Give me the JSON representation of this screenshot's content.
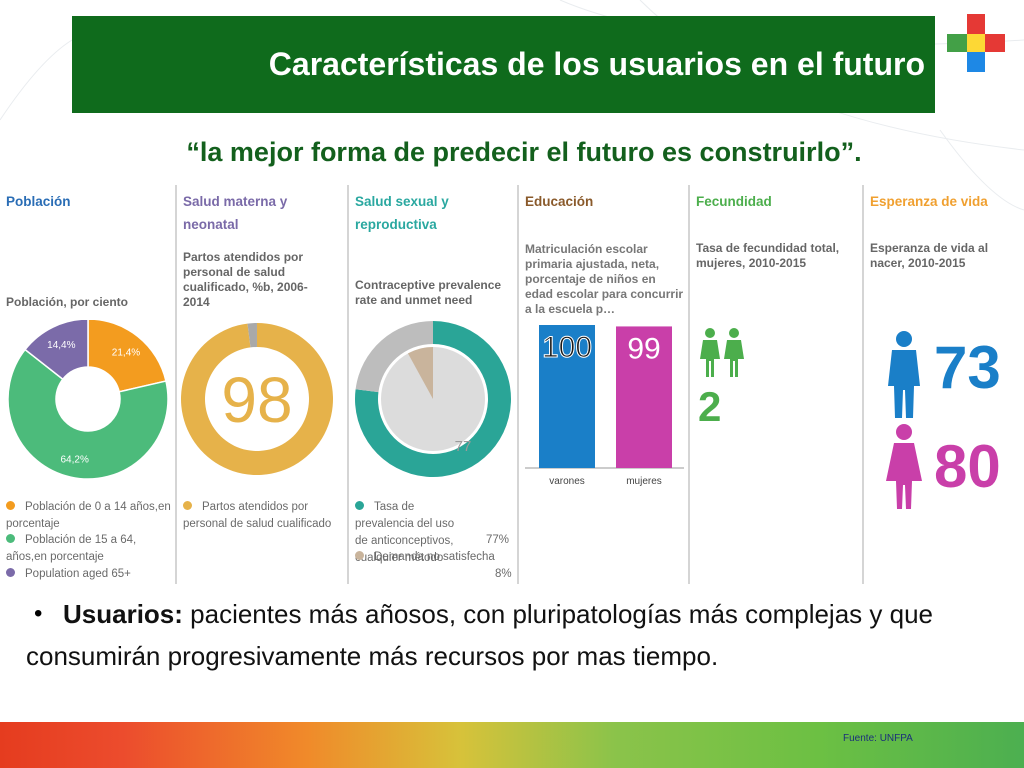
{
  "slide": {
    "title": "Características  de los usuarios en el futuro",
    "quote": "“la mejor forma de predecir el futuro es construirlo”.",
    "bullet_bold": "Usuarios:",
    "bullet_text": " pacientes más añosos, con pluripatologías más complejas y que consumirán progresivamente más recursos por mas tiempo.",
    "source": "Fuente: UNFPA"
  },
  "colors": {
    "title_bg": "#0f6b1c",
    "poblacion": "#2a6db5",
    "salud_materna": "#7a6aa8",
    "salud_sexual": "#2aa8a0",
    "educacion": "#8a5a2b",
    "fecundidad": "#4cae4c",
    "esperanza": "#f0a030",
    "varones": "#1a7fc8",
    "mujeres": "#c93fa9"
  },
  "panels": {
    "poblacion": {
      "title": "Población",
      "subtitle": "Población, por ciento",
      "legend": [
        "Población de 0 a 14 años,en porcentaje",
        "Población de 15 a 64, años,en porcentaje",
        "Population aged 65+"
      ]
    },
    "salud_materna": {
      "title": "Salud materna y neonatal",
      "subtitle": "Partos atendidos por personal de salud cualificado, %b, 2006-2014",
      "legend": "Partos atendidos por personal de salud cualificado"
    },
    "salud_sexual": {
      "title": "Salud sexual y reproductiva",
      "subtitle": "Contraceptive prevalence rate and unmet need",
      "legend1": "Tasa de prevalencia del uso de anticonceptivos, cualquier método",
      "legend1_value": "77%",
      "legend2": "Demanda no satisfecha",
      "legend2_value": "8%"
    },
    "educacion": {
      "title": "Educación",
      "subtitle": "Matriculación escolar primaria ajustada, neta, porcentaje de niños en edad escolar para concurrir a la escuela p…"
    },
    "fecundidad": {
      "title": "Fecundidad",
      "subtitle": "Tasa de fecundidad total, mujeres, 2010-2015",
      "value": "2"
    },
    "esperanza": {
      "title": "Esperanza de vida",
      "subtitle": "Esperanza de vida al nacer, 2010-2015",
      "male_value": "73",
      "female_value": "80"
    }
  },
  "chart_data": [
    {
      "type": "pie",
      "title": "Población, por ciento",
      "categories": [
        "Población de 0 a 14 años,en porcentaje",
        "Población de 15 a 64, años,en porcentaje",
        "Population aged 65+"
      ],
      "values": [
        21.4,
        64.2,
        14.4
      ],
      "labels": [
        "21,4%",
        "64,2%",
        "14,4%"
      ],
      "colors": [
        "#f39c1f",
        "#4cbb7b",
        "#7b6ba9"
      ]
    },
    {
      "type": "pie",
      "title": "Partos atendidos por personal de salud cualificado, %b, 2006-2014",
      "categories": [
        "Partos atendidos por personal de salud cualificado"
      ],
      "values": [
        98
      ],
      "center_label": "98",
      "colors": [
        "#e6b24a",
        "#a9a9a9"
      ]
    },
    {
      "type": "pie",
      "title": "Contraceptive prevalence rate and unmet need",
      "series": [
        {
          "name": "Tasa de prevalencia del uso de anticonceptivos, cualquier método",
          "values": [
            77
          ]
        },
        {
          "name": "Demanda no satisfecha",
          "values": [
            8
          ]
        }
      ],
      "inner_label": "77",
      "colors": [
        "#2aa597",
        "#c9b49c"
      ]
    },
    {
      "type": "bar",
      "title": "Matriculación escolar primaria ajustada, neta, porcentaje de niños en edad escolar para concurrir a la escuela p…",
      "categories": [
        "varones",
        "mujeres"
      ],
      "values": [
        100,
        99
      ],
      "labels": [
        "100",
        "99"
      ],
      "ylim": [
        0,
        100
      ],
      "colors": [
        "#1a7fc8",
        "#c93fa9"
      ]
    }
  ]
}
